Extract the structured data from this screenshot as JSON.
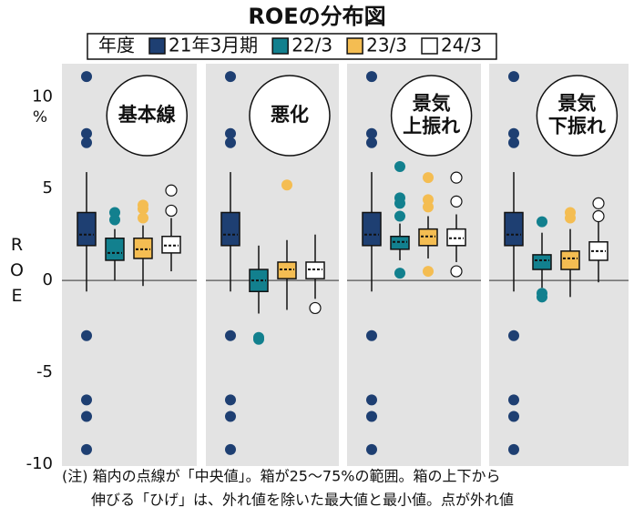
{
  "chart_data": {
    "type": "box",
    "title": "ROEの分布図",
    "legend_title": "年度",
    "ylabel": "ROE",
    "y_unit": "%",
    "ylim": [
      -10.1,
      11.8
    ],
    "yticks": [
      -10,
      -5,
      0,
      5,
      10
    ],
    "panel_color": "#e3e3e3",
    "series": [
      {
        "name": "21年3月期",
        "color": "#1e3f72"
      },
      {
        "name": "22/3",
        "color": "#12808e"
      },
      {
        "name": "23/3",
        "color": "#f4bd52"
      },
      {
        "name": "24/3",
        "color": "#ffffff"
      }
    ],
    "panels": [
      {
        "label": [
          "基本線"
        ],
        "boxes": [
          {
            "whislo": -0.6,
            "q1": 1.9,
            "med": 2.5,
            "q3": 3.7,
            "whishi": 5.9,
            "fliers": [
              11.1,
              8.0,
              7.5,
              -3.0,
              -6.5,
              -7.4,
              -9.2
            ]
          },
          {
            "whislo": 0.0,
            "q1": 1.1,
            "med": 1.5,
            "q3": 2.3,
            "whishi": 2.8,
            "fliers": [
              3.7,
              3.3
            ]
          },
          {
            "whislo": -0.3,
            "q1": 1.2,
            "med": 1.7,
            "q3": 2.3,
            "whishi": 3.0,
            "fliers": [
              4.1,
              3.9,
              3.4
            ]
          },
          {
            "whislo": 0.5,
            "q1": 1.5,
            "med": 1.9,
            "q3": 2.4,
            "whishi": 3.4,
            "fliers": [
              4.9,
              3.8
            ]
          }
        ]
      },
      {
        "label": [
          "悪化"
        ],
        "boxes": [
          {
            "whislo": -0.6,
            "q1": 1.9,
            "med": 2.5,
            "q3": 3.7,
            "whishi": 5.9,
            "fliers": [
              11.1,
              8.0,
              7.5,
              -3.0,
              -6.5,
              -7.4,
              -9.2
            ]
          },
          {
            "whislo": -1.8,
            "q1": -0.6,
            "med": 0.0,
            "q3": 0.6,
            "whishi": 1.9,
            "fliers": [
              -3.1,
              -3.2
            ]
          },
          {
            "whislo": -1.6,
            "q1": 0.1,
            "med": 0.6,
            "q3": 1.0,
            "whishi": 2.2,
            "fliers": [
              5.2
            ]
          },
          {
            "whislo": -1.0,
            "q1": 0.1,
            "med": 0.6,
            "q3": 1.0,
            "whishi": 2.5,
            "fliers": [
              -1.5
            ]
          }
        ]
      },
      {
        "label": [
          "景気",
          "上振れ"
        ],
        "boxes": [
          {
            "whislo": -0.6,
            "q1": 1.9,
            "med": 2.5,
            "q3": 3.7,
            "whishi": 5.9,
            "fliers": [
              11.1,
              8.0,
              7.5,
              -3.0,
              -6.5,
              -7.4,
              -9.2
            ]
          },
          {
            "whislo": 1.1,
            "q1": 1.7,
            "med": 2.1,
            "q3": 2.4,
            "whishi": 3.1,
            "fliers": [
              6.2,
              4.5,
              4.2,
              3.5,
              0.4
            ]
          },
          {
            "whislo": 1.2,
            "q1": 1.9,
            "med": 2.4,
            "q3": 2.8,
            "whishi": 3.5,
            "fliers": [
              5.6,
              4.4,
              4.0,
              0.5
            ]
          },
          {
            "whislo": 1.0,
            "q1": 1.9,
            "med": 2.3,
            "q3": 2.8,
            "whishi": 3.6,
            "fliers": [
              5.6,
              4.3,
              0.5
            ]
          }
        ]
      },
      {
        "label": [
          "景気",
          "下振れ"
        ],
        "boxes": [
          {
            "whislo": -0.6,
            "q1": 1.9,
            "med": 2.5,
            "q3": 3.7,
            "whishi": 5.9,
            "fliers": [
              11.1,
              8.0,
              7.5,
              -3.0,
              -6.5,
              -7.4,
              -9.2
            ]
          },
          {
            "whislo": -0.4,
            "q1": 0.6,
            "med": 1.1,
            "q3": 1.4,
            "whishi": 2.6,
            "fliers": [
              3.2,
              -0.7,
              -0.9
            ]
          },
          {
            "whislo": -0.9,
            "q1": 0.6,
            "med": 1.2,
            "q3": 1.6,
            "whishi": 2.8,
            "fliers": [
              3.7,
              3.4
            ]
          },
          {
            "whislo": -0.1,
            "q1": 1.1,
            "med": 1.6,
            "q3": 2.1,
            "whishi": 3.2,
            "fliers": [
              4.2,
              3.5
            ]
          }
        ]
      }
    ],
    "note": [
      "(注) 箱内の点線が「中央値」。箱が25～75%の範囲。箱の上下から",
      "伸びる「ひげ」は、外れ値を除いた最大値と最小値。点が外れ値"
    ]
  }
}
